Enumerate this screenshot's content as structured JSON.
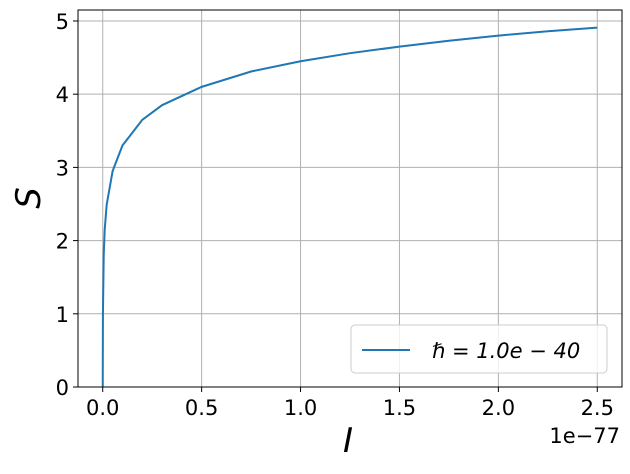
{
  "chart_data": {
    "type": "line",
    "x_label": "I",
    "y_label": "S",
    "x_offset_label": "1e−77",
    "x": [
      0.00014,
      0.0002,
      0.001,
      0.005,
      0.01,
      0.02,
      0.05,
      0.1,
      0.2,
      0.3,
      0.5,
      0.75,
      1.0,
      1.25,
      1.5,
      1.75,
      2.0,
      2.25,
      2.5
    ],
    "series": [
      {
        "name": "ℏ = 1.0e − 40",
        "color": "#1f77b4",
        "values": [
          0.0,
          0.19,
          1.0,
          1.8,
          2.15,
          2.49,
          2.95,
          3.3,
          3.65,
          3.85,
          4.1,
          4.31,
          4.45,
          4.56,
          4.65,
          4.73,
          4.8,
          4.86,
          4.91
        ]
      }
    ],
    "xlim": [
      -0.125,
      2.625
    ],
    "xticks": [
      {
        "value": 0,
        "label": "0.0"
      },
      0.5,
      {
        "value": 1,
        "label": "1.0"
      },
      1.5,
      {
        "value": 2,
        "label": "2.0"
      },
      2.5
    ],
    "ylim": [
      0,
      5.15
    ],
    "yticks": [
      0,
      1,
      2,
      3,
      4,
      5
    ],
    "grid": true,
    "legend": "lower right"
  }
}
